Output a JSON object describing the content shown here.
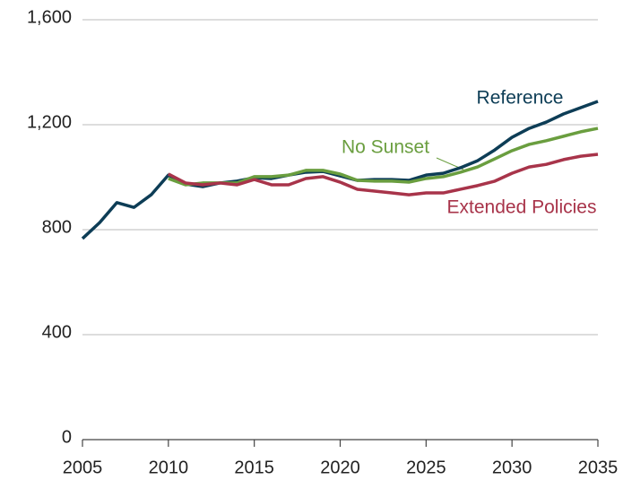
{
  "chart_data": {
    "type": "line",
    "x": [
      2005,
      2006,
      2007,
      2008,
      2009,
      2010,
      2011,
      2012,
      2013,
      2014,
      2015,
      2016,
      2017,
      2018,
      2019,
      2020,
      2021,
      2022,
      2023,
      2024,
      2025,
      2026,
      2027,
      2028,
      2029,
      2030,
      2031,
      2032,
      2033,
      2034,
      2035
    ],
    "series": [
      {
        "name": "Reference",
        "color": "#0d3d56",
        "values": [
          766,
          827,
          903,
          885,
          933,
          1008,
          974,
          964,
          978,
          985,
          998,
          995,
          1008,
          1019,
          1022,
          1005,
          988,
          991,
          991,
          988,
          1008,
          1015,
          1036,
          1063,
          1104,
          1152,
          1186,
          1210,
          1241,
          1265,
          1289
        ]
      },
      {
        "name": "No Sunset",
        "color": "#6a9e3f",
        "values": [
          null,
          null,
          null,
          null,
          null,
          995,
          971,
          978,
          978,
          978,
          1002,
          1002,
          1008,
          1026,
          1026,
          1012,
          988,
          985,
          985,
          981,
          995,
          1002,
          1019,
          1039,
          1070,
          1101,
          1125,
          1139,
          1156,
          1173,
          1186
        ]
      },
      {
        "name": "Extended Policies",
        "color": "#a8344a",
        "values": [
          null,
          null,
          null,
          null,
          null,
          1012,
          978,
          971,
          978,
          971,
          991,
          971,
          971,
          995,
          1002,
          981,
          954,
          947,
          940,
          933,
          940,
          940,
          954,
          968,
          985,
          1015,
          1039,
          1049,
          1067,
          1080,
          1087
        ]
      }
    ],
    "xlim": [
      2005,
      2035
    ],
    "xticks": [
      2005,
      2010,
      2015,
      2020,
      2025,
      2030,
      2035
    ],
    "ylim": [
      0,
      1600
    ],
    "yticks": [
      0,
      400,
      800,
      {
        "value": 1200,
        "label": "1,200"
      },
      {
        "value": 1600,
        "label": "1,600"
      }
    ],
    "grid": true
  }
}
